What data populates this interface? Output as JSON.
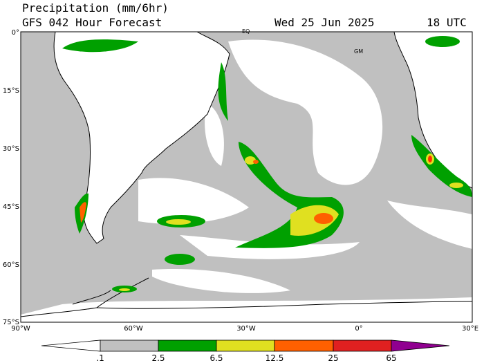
{
  "header": {
    "title": "Precipitation (mm/6hr)",
    "subtitle": "GFS 042 Hour Forecast",
    "date": "Wed 25 Jun 2025",
    "time": "18 UTC"
  },
  "map": {
    "lat_labels": [
      "0°",
      "15°S",
      "30°S",
      "45°S",
      "60°S",
      "75°S"
    ],
    "lon_labels": [
      "90°W",
      "60°W",
      "30°W",
      "0°",
      "30°E"
    ],
    "markers": [
      "EQ",
      "GM"
    ]
  },
  "legend": {
    "labels": [
      ".1",
      "2.5",
      "6.5",
      "12.5",
      "25",
      "65"
    ]
  }
}
